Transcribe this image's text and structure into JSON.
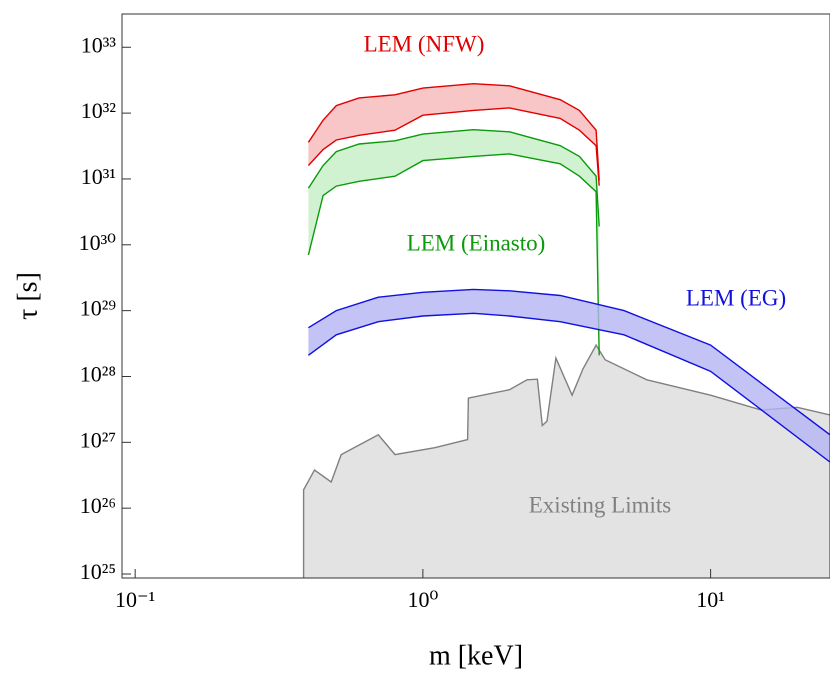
{
  "chart_data": {
    "type": "band",
    "xlabel": "m [keV]",
    "ylabel": "τ [s]",
    "xscale": "log",
    "yscale": "log",
    "xlim": [
      0.09,
      26
    ],
    "ylim": [
      8.7e+24,
      3.2e+33
    ],
    "xticks": [
      {
        "value": 0.1,
        "label": "10⁻¹"
      },
      {
        "value": 1,
        "label": "10⁰"
      },
      {
        "value": 10,
        "label": "10¹"
      }
    ],
    "yticks": [
      {
        "value": 1e+25,
        "label": "10²⁵"
      },
      {
        "value": 1e+26,
        "label": "10²⁶"
      },
      {
        "value": 1e+27,
        "label": "10²⁷"
      },
      {
        "value": 1e+28,
        "label": "10²⁸"
      },
      {
        "value": 1e+29,
        "label": "10²⁹"
      },
      {
        "value": 1e+30,
        "label": "10³⁰"
      },
      {
        "value": 1e+31,
        "label": "10³¹"
      },
      {
        "value": 1e+32,
        "label": "10³²"
      },
      {
        "value": 1e+33,
        "label": "10³³"
      }
    ],
    "series": [
      {
        "name": "Existing Limits",
        "color": "#808080",
        "fill": "#e3e3e3",
        "x": [
          0.385,
          0.42,
          0.48,
          0.52,
          0.7,
          0.8,
          1.1,
          1.43,
          1.44,
          2.0,
          2.3,
          2.5,
          2.6,
          2.7,
          2.9,
          3.3,
          3.6,
          4.0,
          4.3,
          6,
          10,
          15,
          20,
          26
        ],
        "values": [
          1.9e+26,
          3.8e+26,
          2.5e+26,
          6.5e+26,
          1.3e+27,
          6.5e+26,
          8.3e+26,
          1.1e+27,
          4.7e+27,
          6.3e+27,
          8.9e+27,
          9.1e+27,
          1.8e+27,
          2.1e+27,
          1.9e+28,
          5.2e+27,
          1.3e+28,
          3e+28,
          1.8e+28,
          8.9e+27,
          5.2e+27,
          3.1e+27,
          3.4e+27,
          2.6e+27
        ]
      },
      {
        "name": "LEM (NFW)",
        "color": "#e00000",
        "fill": "#f6b8b8",
        "x": [
          0.4,
          0.45,
          0.5,
          0.6,
          0.8,
          1.0,
          1.5,
          2.0,
          3.0,
          3.5,
          4.0,
          4.1
        ],
        "lower": [
          1.6e+31,
          2.8e+31,
          3.9e+31,
          4.6e+31,
          5.5e+31,
          9.3e+31,
          1.1e+32,
          1.2e+32,
          8.3e+31,
          5.5e+31,
          3.2e+31,
          7.9e+30
        ],
        "upper": [
          3.6e+31,
          7.8e+31,
          1.3e+32,
          1.7e+32,
          1.9e+32,
          2.4e+32,
          2.8e+32,
          2.6e+32,
          1.6e+32,
          1.1e+32,
          5.5e+31,
          9.5e+30
        ]
      },
      {
        "name": "LEM (Einasto)",
        "color": "#0a9a0a",
        "fill": "#c6efc6",
        "x": [
          0.4,
          0.45,
          0.5,
          0.6,
          0.8,
          1.0,
          1.5,
          2.0,
          3.0,
          3.5,
          4.0,
          4.1
        ],
        "lower": [
          7e+29,
          5.6e+30,
          7.8e+30,
          9.2e+30,
          1.1e+31,
          1.9e+31,
          2.2e+31,
          2.4e+31,
          1.7e+31,
          1.1e+31,
          6.4e+30,
          2.1e+28
        ],
        "upper": [
          7.2e+30,
          1.6e+31,
          2.6e+31,
          3.4e+31,
          3.8e+31,
          4.8e+31,
          5.6e+31,
          5.2e+31,
          3.2e+31,
          2.2e+31,
          1.1e+31,
          1.9e+30
        ]
      },
      {
        "name": "LEM (EG)",
        "color": "#1010e0",
        "fill": "#b4b4f4",
        "x": [
          0.4,
          0.5,
          0.7,
          1.0,
          1.5,
          2.0,
          3.0,
          5.0,
          10,
          26
        ],
        "lower": [
          2.1e+28,
          4.3e+28,
          6.8e+28,
          8.3e+28,
          9.1e+28,
          8.3e+28,
          6.8e+28,
          4.3e+28,
          1.2e+28,
          5e+26
        ],
        "upper": [
          5.5e+28,
          1e+29,
          1.6e+29,
          1.9e+29,
          2.1e+29,
          2e+29,
          1.7e+29,
          1e+29,
          3e+28,
          1.3e+27
        ]
      }
    ]
  }
}
